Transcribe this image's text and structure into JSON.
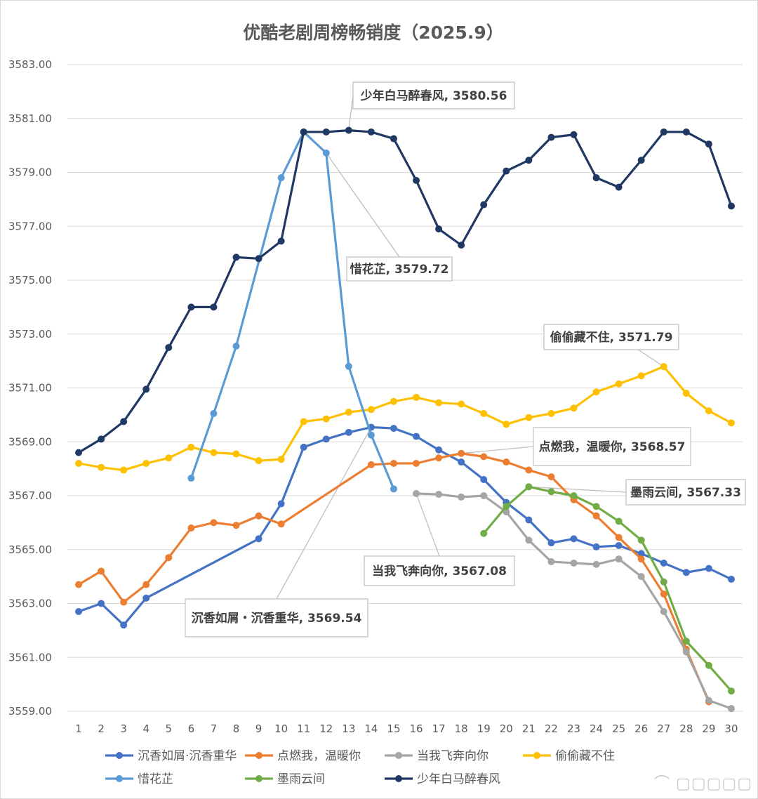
{
  "chart_data": {
    "type": "line",
    "title": "优酷老剧周榜畅销度（2025.9）",
    "xlabel": "",
    "ylabel": "",
    "ylim": [
      3559,
      3583
    ],
    "yticks": [
      3559,
      3561,
      3563,
      3565,
      3567,
      3569,
      3571,
      3573,
      3575,
      3577,
      3579,
      3581,
      3583
    ],
    "ytick_labels": [
      "3559.00",
      "3561.00",
      "3563.00",
      "3565.00",
      "3567.00",
      "3569.00",
      "3571.00",
      "3573.00",
      "3575.00",
      "3577.00",
      "3579.00",
      "3581.00",
      "3583.00"
    ],
    "x": [
      1,
      2,
      3,
      4,
      5,
      6,
      7,
      8,
      9,
      10,
      11,
      12,
      13,
      14,
      15,
      16,
      17,
      18,
      19,
      20,
      21,
      22,
      23,
      24,
      25,
      26,
      27,
      28,
      29,
      30
    ],
    "grid": true,
    "legend_position": "bottom",
    "series": [
      {
        "name": "沉香如屑·沉香重华",
        "color": "#4472C4",
        "values": [
          3562.7,
          3563.0,
          3562.2,
          3563.2,
          null,
          null,
          null,
          null,
          3565.4,
          3566.7,
          3568.8,
          3569.1,
          3569.35,
          3569.54,
          3569.5,
          3569.2,
          3568.7,
          3568.25,
          3567.6,
          3566.75,
          3566.1,
          3565.25,
          3565.4,
          3565.1,
          3565.15,
          3564.85,
          3564.5,
          3564.15,
          3564.3,
          3563.9
        ]
      },
      {
        "name": "点燃我，温暖你",
        "color": "#ED7D31",
        "values": [
          3563.7,
          3564.2,
          3563.05,
          3563.7,
          3564.7,
          3565.8,
          3566.0,
          3565.9,
          3566.25,
          3565.95,
          null,
          null,
          null,
          3568.15,
          3568.2,
          3568.2,
          3568.4,
          3568.57,
          3568.45,
          3568.25,
          3567.95,
          3567.7,
          3566.85,
          3566.25,
          3565.45,
          3564.65,
          3563.35,
          3561.3,
          3559.35,
          null
        ]
      },
      {
        "name": "当我飞奔向你",
        "color": "#A5A5A5",
        "values": [
          null,
          null,
          null,
          null,
          null,
          null,
          null,
          null,
          null,
          null,
          null,
          null,
          null,
          null,
          null,
          3567.08,
          3567.05,
          3566.95,
          3567.0,
          3566.4,
          3565.35,
          3564.55,
          3564.5,
          3564.45,
          3564.65,
          3564.0,
          3562.7,
          3561.2,
          3559.4,
          3559.1
        ]
      },
      {
        "name": "偷偷藏不住",
        "color": "#FFC000",
        "values": [
          3568.2,
          3568.05,
          3567.95,
          3568.2,
          3568.4,
          3568.8,
          3568.6,
          3568.55,
          3568.3,
          3568.35,
          3569.75,
          3569.85,
          3570.1,
          3570.2,
          3570.5,
          3570.65,
          3570.45,
          3570.4,
          3570.05,
          3569.65,
          3569.9,
          3570.05,
          3570.25,
          3570.85,
          3571.15,
          3571.45,
          3571.79,
          3570.8,
          3570.15,
          3569.7
        ]
      },
      {
        "name": "惜花芷",
        "color": "#5B9BD5",
        "values": [
          null,
          null,
          null,
          null,
          null,
          3567.65,
          3570.05,
          3572.55,
          null,
          3578.8,
          3580.5,
          3579.72,
          3571.8,
          3569.25,
          3567.25,
          null,
          null,
          null,
          null,
          null,
          null,
          null,
          null,
          null,
          null,
          null,
          null,
          null,
          null,
          null
        ]
      },
      {
        "name": "墨雨云间",
        "color": "#70AD47",
        "values": [
          null,
          null,
          null,
          null,
          null,
          null,
          null,
          null,
          null,
          null,
          null,
          null,
          null,
          null,
          null,
          null,
          null,
          null,
          3565.6,
          3566.6,
          3567.33,
          3567.15,
          3567.0,
          3566.6,
          3566.05,
          3565.35,
          3563.8,
          3561.6,
          3560.7,
          3559.75
        ]
      },
      {
        "name": "少年白马醉春风",
        "color": "#1F3864",
        "values": [
          3568.6,
          3569.1,
          3569.75,
          3570.95,
          3572.5,
          3574.0,
          3574.0,
          3575.85,
          3575.8,
          3576.45,
          3580.5,
          3580.5,
          3580.56,
          3580.5,
          3580.25,
          3578.7,
          3576.9,
          3576.3,
          3577.8,
          3579.05,
          3579.45,
          3580.3,
          3580.4,
          3578.8,
          3578.45,
          3579.45,
          3580.5,
          3580.5,
          3580.05,
          3577.75
        ]
      }
    ],
    "annotations": [
      {
        "text": "少年白马醉春风, 3580.56",
        "series": "少年白马醉春风",
        "x": 13,
        "y": 3580.56
      },
      {
        "text": "惜花芷, 3579.72",
        "series": "惜花芷",
        "x": 12,
        "y": 3579.72
      },
      {
        "text": "偷偷藏不住, 3571.79",
        "series": "偷偷藏不住",
        "x": 27,
        "y": 3571.79
      },
      {
        "text": "点燃我，温暖你, 3568.57",
        "series": "点燃我，温暖你",
        "x": 18,
        "y": 3568.57
      },
      {
        "text": "墨雨云间, 3567.33",
        "series": "墨雨云间",
        "x": 21,
        "y": 3567.33
      },
      {
        "text": "当我飞奔向你, 3567.08",
        "series": "当我飞奔向你",
        "x": 16,
        "y": 3567.08
      },
      {
        "text": "沉香如屑・沉香重华, 3569.54",
        "series": "沉香如屑·沉香重华",
        "x": 14,
        "y": 3569.54
      }
    ]
  }
}
